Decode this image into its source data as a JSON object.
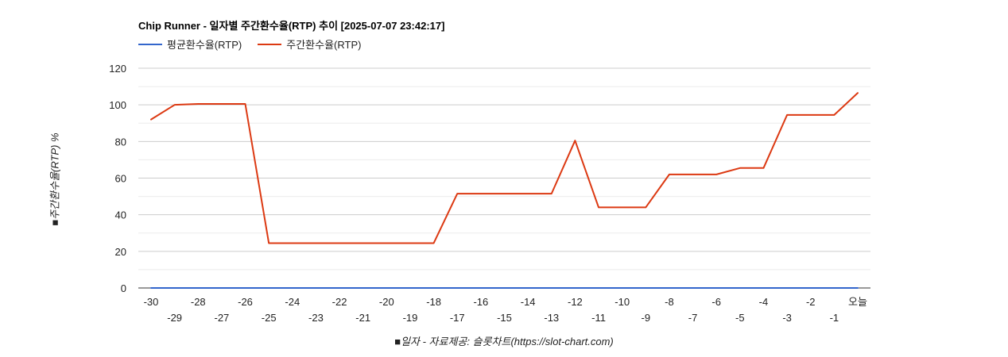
{
  "chart_data": {
    "type": "line",
    "title": "Chip Runner - 일자별 주간환수율(RTP) 추이 [2025-07-07 23:42:17]",
    "ylabel": "■주간환수율(RTP) %",
    "xlabel": "■일자 - 자료제공: 슬롯차트(https://slot-chart.com)",
    "ylim": [
      0,
      120
    ],
    "yticks": [
      0,
      20,
      40,
      60,
      80,
      100,
      120
    ],
    "grid": true,
    "legend_position": "top-left",
    "categories": [
      "-30",
      "-29",
      "-28",
      "-27",
      "-26",
      "-25",
      "-24",
      "-23",
      "-22",
      "-21",
      "-20",
      "-19",
      "-18",
      "-17",
      "-16",
      "-15",
      "-14",
      "-13",
      "-12",
      "-11",
      "-10",
      "-9",
      "-8",
      "-7",
      "-6",
      "-5",
      "-4",
      "-3",
      "-2",
      "-1",
      "오늘"
    ],
    "series": [
      {
        "name": "평균환수율(RTP)",
        "color": "#3366cc",
        "values": [
          0,
          0,
          0,
          0,
          0,
          0,
          0,
          0,
          0,
          0,
          0,
          0,
          0,
          0,
          0,
          0,
          0,
          0,
          0,
          0,
          0,
          0,
          0,
          0,
          0,
          0,
          0,
          0,
          0,
          0,
          0
        ]
      },
      {
        "name": "주간환수율(RTP)",
        "color": "#dc3912",
        "values": [
          92,
          100,
          100.5,
          100.5,
          100.5,
          24.5,
          24.5,
          24.5,
          24.5,
          24.5,
          24.5,
          24.5,
          24.5,
          51.5,
          51.5,
          51.5,
          51.5,
          51.5,
          80.5,
          44,
          44,
          44,
          62,
          62,
          62,
          65.5,
          65.5,
          94.5,
          94.5,
          94.5,
          106.5
        ]
      }
    ]
  }
}
